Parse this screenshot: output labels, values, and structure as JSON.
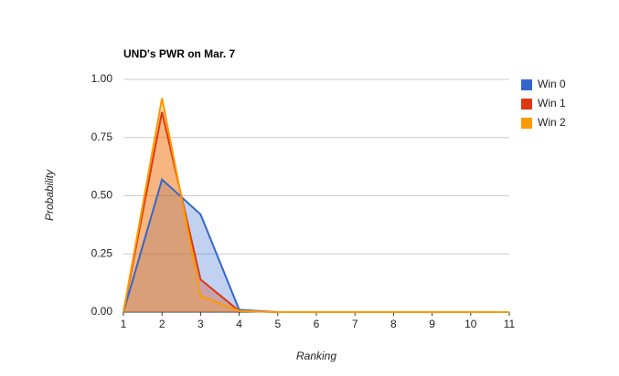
{
  "chart_data": {
    "type": "area",
    "title": "UND's PWR on Mar. 7",
    "x_label": "Ranking",
    "y_label": "Probability",
    "x": [
      1,
      2,
      3,
      4,
      5,
      6,
      7,
      8,
      9,
      10,
      11
    ],
    "series": [
      {
        "name": "Win 0",
        "color": "#3366cc",
        "values": [
          0,
          0.57,
          0.42,
          0.01,
          0,
          0,
          0,
          0,
          0,
          0,
          0
        ]
      },
      {
        "name": "Win 1",
        "color": "#dc3912",
        "values": [
          0,
          0.86,
          0.14,
          0.005,
          0,
          0,
          0,
          0,
          0,
          0,
          0
        ]
      },
      {
        "name": "Win 2",
        "color": "#ff9900",
        "values": [
          0,
          0.92,
          0.07,
          0.005,
          0,
          0,
          0,
          0,
          0,
          0,
          0
        ]
      }
    ],
    "xlim": [
      1,
      11
    ],
    "xticks": [
      1,
      2,
      3,
      4,
      5,
      6,
      7,
      8,
      9,
      10,
      11
    ],
    "ylim": [
      0,
      1
    ],
    "yticks": [
      {
        "value": 0,
        "label": "0.00"
      },
      0.25,
      {
        "value": 0.5,
        "label": "0.50"
      },
      0.75,
      {
        "value": 1,
        "label": "1.00"
      }
    ],
    "grid": true,
    "legend": "right"
  }
}
